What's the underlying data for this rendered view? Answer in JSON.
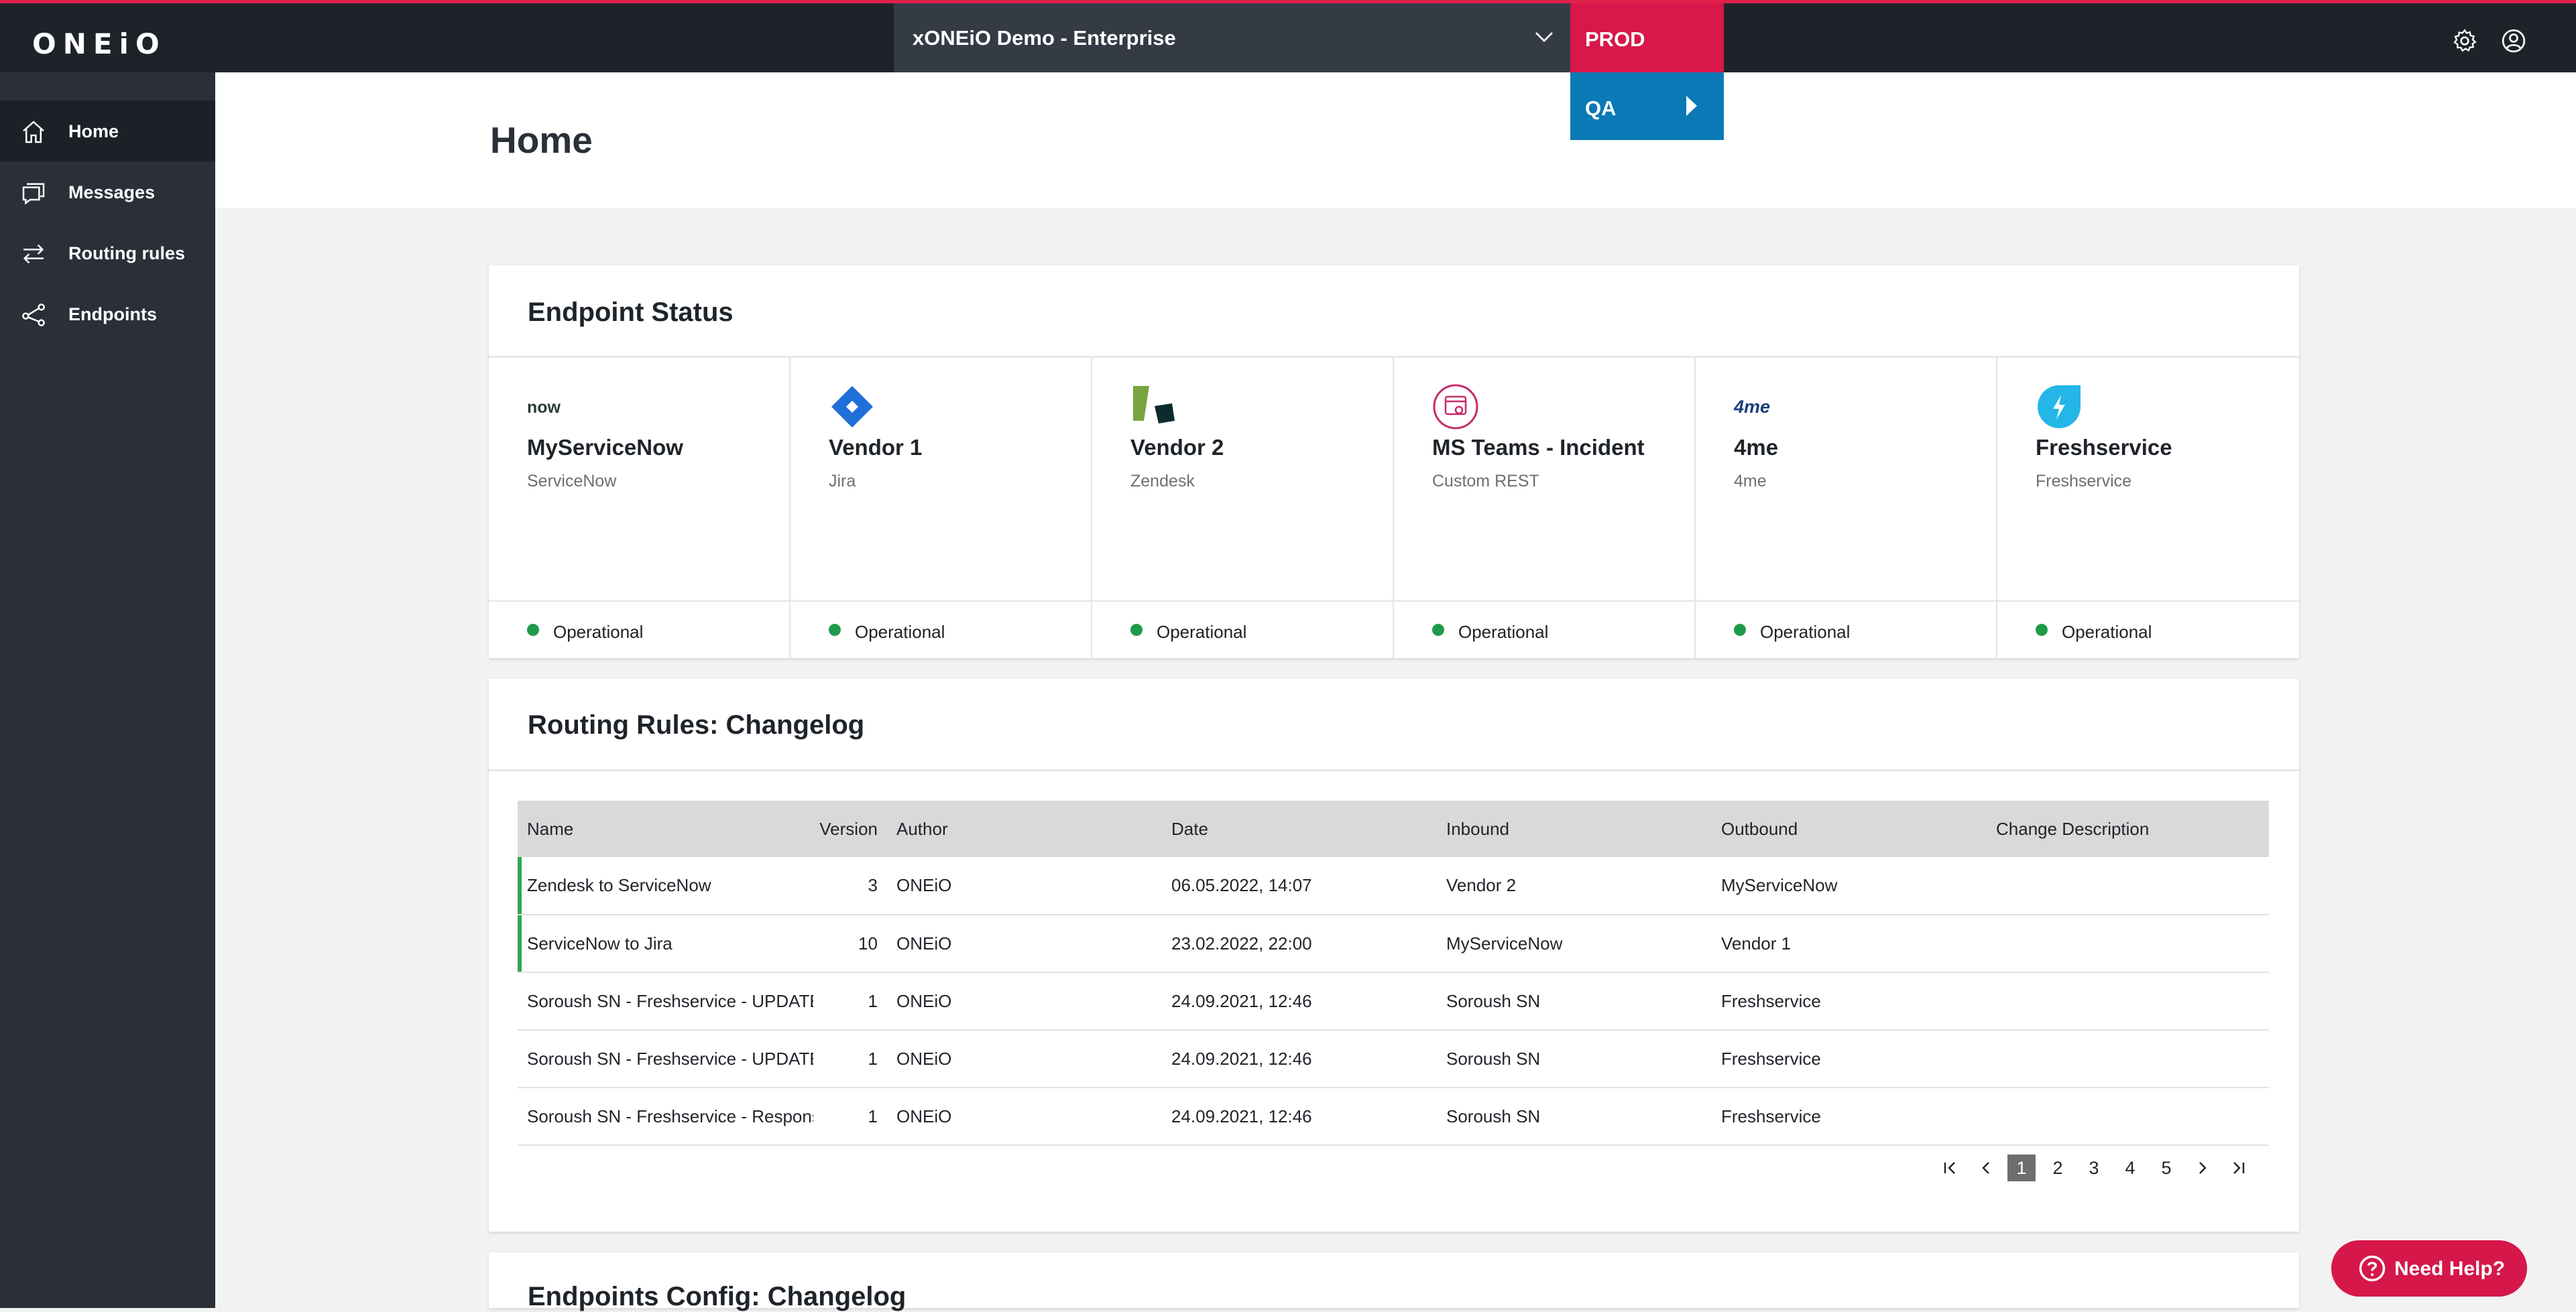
{
  "app": {
    "logo_text": "ONEiO"
  },
  "topbar": {
    "workspace": "xONEiO Demo - Enterprise",
    "env_selected": "PROD",
    "env_option": "QA",
    "settings_icon": "gear-icon",
    "account_icon": "user-circle-icon"
  },
  "sidebar": {
    "items": [
      {
        "label": "Home",
        "icon": "home-icon"
      },
      {
        "label": "Messages",
        "icon": "messages-icon"
      },
      {
        "label": "Routing rules",
        "icon": "routing-icon"
      },
      {
        "label": "Endpoints",
        "icon": "endpoints-icon"
      }
    ]
  },
  "page": {
    "title": "Home"
  },
  "endpoint_status": {
    "title": "Endpoint Status",
    "endpoints": [
      {
        "name": "MyServiceNow",
        "type": "ServiceNow",
        "status": "Operational",
        "logo_text": "now"
      },
      {
        "name": "Vendor 1",
        "type": "Jira",
        "status": "Operational"
      },
      {
        "name": "Vendor 2",
        "type": "Zendesk",
        "status": "Operational"
      },
      {
        "name": "MS Teams - Incident",
        "type": "Custom REST",
        "status": "Operational"
      },
      {
        "name": "4me",
        "type": "4me",
        "status": "Operational",
        "logo_text": "4me"
      },
      {
        "name": "Freshservice",
        "type": "Freshservice",
        "status": "Operational"
      }
    ],
    "status_color": "#1e9b4a"
  },
  "routing_changelog": {
    "title": "Routing Rules: Changelog",
    "columns": [
      "Name",
      "Version",
      "Author",
      "Date",
      "Inbound",
      "Outbound",
      "Change Description"
    ],
    "rows": [
      {
        "name": "Zendesk to ServiceNow",
        "version": "3",
        "author": "ONEiO",
        "date": "06.05.2022, 14:07",
        "inbound": "Vendor 2",
        "outbound": "MyServiceNow",
        "desc": ""
      },
      {
        "name": "ServiceNow to Jira",
        "version": "10",
        "author": "ONEiO",
        "date": "23.02.2022, 22:00",
        "inbound": "MyServiceNow",
        "outbound": "Vendor 1",
        "desc": ""
      },
      {
        "name": "Soroush SN - Freshservice - UPDATE",
        "version": "1",
        "author": "ONEiO",
        "date": "24.09.2021, 12:46",
        "inbound": "Soroush SN",
        "outbound": "Freshservice",
        "desc": ""
      },
      {
        "name": "Soroush SN - Freshservice - UPDATE",
        "version": "1",
        "author": "ONEiO",
        "date": "24.09.2021, 12:46",
        "inbound": "Soroush SN",
        "outbound": "Freshservice",
        "desc": ""
      },
      {
        "name": "Soroush SN - Freshservice - Response",
        "version": "1",
        "author": "ONEiO",
        "date": "24.09.2021, 12:46",
        "inbound": "Soroush SN",
        "outbound": "Freshservice",
        "desc": ""
      }
    ],
    "pagination": {
      "pages": [
        "1",
        "2",
        "3",
        "4",
        "5"
      ],
      "current": "1"
    }
  },
  "endpoints_changelog": {
    "title": "Endpoints Config: Changelog"
  },
  "help": {
    "label": "Need Help?"
  },
  "colors": {
    "accent": "#d8174a",
    "qa": "#0a79b5",
    "sidebar": "#2a2f38",
    "topbar": "#1e232a"
  }
}
